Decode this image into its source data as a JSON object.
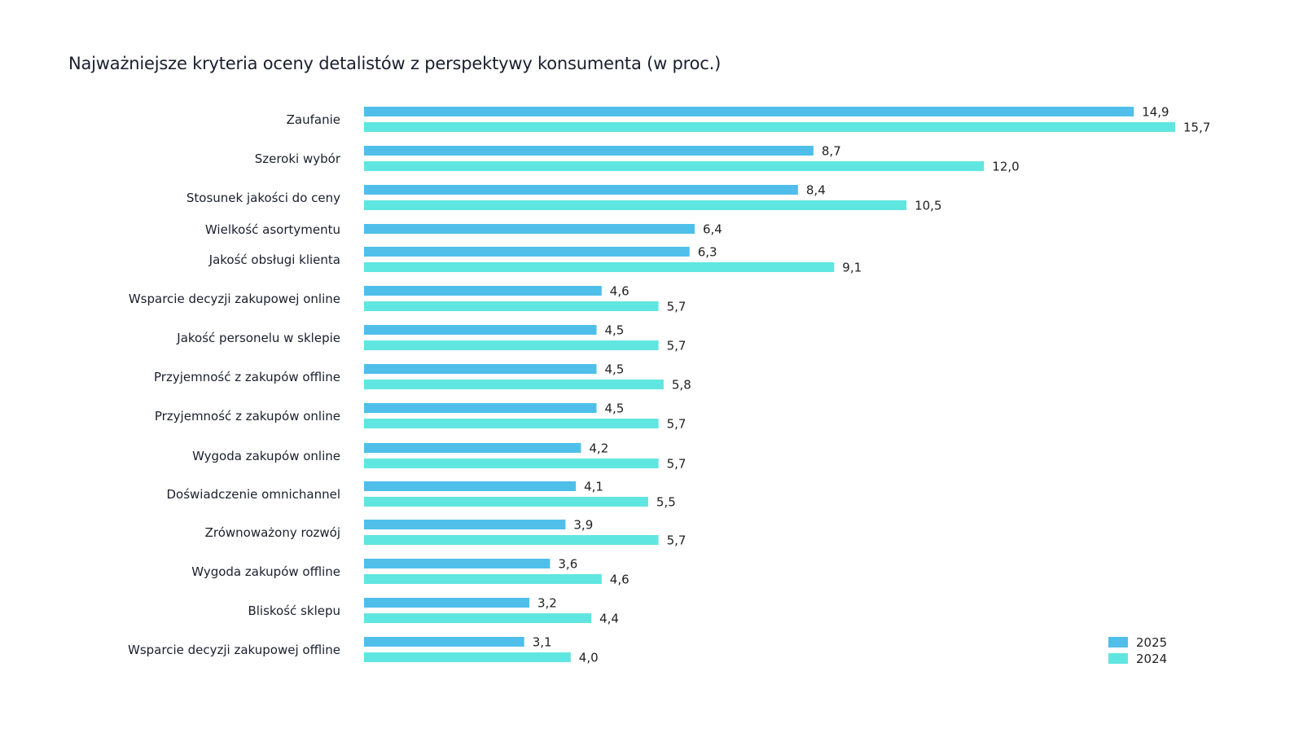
{
  "chart_data": {
    "type": "bar",
    "orientation": "horizontal",
    "title": "Najważniejsze kryteria oceny detalistów z perspektywy konsumenta (w proc.)",
    "xlabel": "",
    "ylabel": "",
    "xlim": [
      0,
      16
    ],
    "grid": false,
    "legend_position": "bottom-right",
    "decimal_separator": ",",
    "categories": [
      "Zaufanie",
      "Szeroki wybór",
      "Stosunek jakości do ceny",
      "Wielkość asortymentu",
      "Jakość obsługi klienta",
      "Wsparcie decyzji zakupowej online",
      "Jakość personelu w sklepie",
      "Przyjemność z zakupów offline",
      "Przyjemność z zakupów online",
      "Wygoda zakupów online",
      "Doświadczenie omnichannel",
      "Zrównoważony rozwój",
      "Wygoda zakupów offline",
      "Bliskość sklepu",
      "Wsparcie decyzji zakupowej offline"
    ],
    "series": [
      {
        "name": "2025",
        "color": "#4fbfea",
        "values": [
          14.9,
          8.7,
          8.4,
          6.4,
          6.3,
          4.6,
          4.5,
          4.5,
          4.5,
          4.2,
          4.1,
          3.9,
          3.6,
          3.2,
          3.1
        ]
      },
      {
        "name": "2024",
        "color": "#60e6e0",
        "values": [
          15.7,
          12.0,
          10.5,
          null,
          9.1,
          5.7,
          5.7,
          5.8,
          5.7,
          5.7,
          5.5,
          5.7,
          4.6,
          4.4,
          4.0
        ]
      }
    ]
  }
}
